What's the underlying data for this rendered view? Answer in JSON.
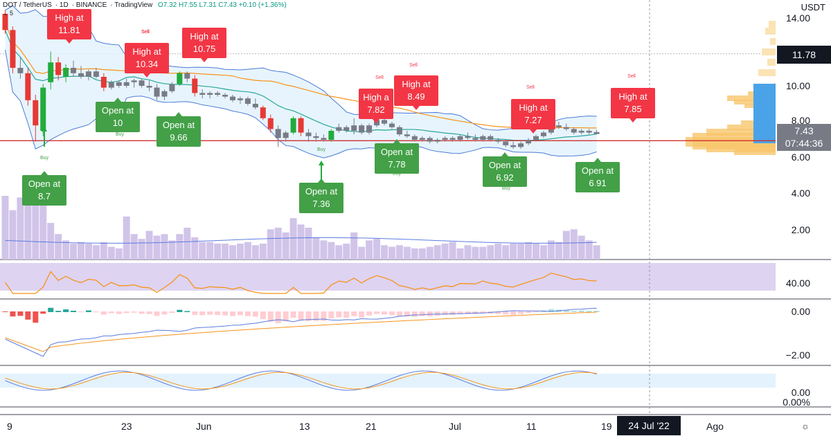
{
  "header": {
    "symbol": "DOT / TetherUS",
    "interval": "1D",
    "exchange": "BINANCE",
    "platform": "TradingView",
    "ohlc": "O7.32 H7.55 L7.31 C7.43 +0.10 (+1.36%)",
    "sub": "⌄ 5"
  },
  "axis": {
    "unit": "USDT",
    "price_ticks": [
      "14.00",
      "10.00",
      "8.00",
      "6.00",
      "4.00",
      "2.00"
    ],
    "rsi_tick": "40.00",
    "macd_ticks": [
      "0.00",
      "−2.00"
    ],
    "stoch_ticks": [
      "0.00",
      "0.00%"
    ],
    "date_ticks": [
      "9",
      "23",
      "Jun",
      "13",
      "21",
      "Jul",
      "11",
      "19",
      "Ago"
    ],
    "date_highlight": "24 Jul '22"
  },
  "price_labels": {
    "last": "7.43",
    "countdown": "07:44:36",
    "marker": "11.78"
  },
  "colors": {
    "up": "#22ab3c",
    "down": "#e53935",
    "neutral_candle": "#787b86",
    "sell_label": "#f23645",
    "buy_label": "#43a047",
    "bollinger_band": "#4a7ad6",
    "bollinger_fill": "#e3f2fd",
    "sma": "#f7931a",
    "middle": "#26a69a",
    "volume": "#d1c4e9",
    "rsi_band": "#d6c8ee",
    "support": "#d32f2f"
  },
  "signals": [
    {
      "type": "sell",
      "lines": [
        "High at",
        "11.81"
      ],
      "tag": "Sell",
      "date": "May 14"
    },
    {
      "type": "sell",
      "lines": [
        "High at",
        "10.34"
      ],
      "tag": "Sell",
      "date": "May 24"
    },
    {
      "type": "sell",
      "lines": [
        "High at",
        "10.75"
      ],
      "tag": "Sell",
      "date": "Jun 1"
    },
    {
      "type": "sell",
      "lines": [
        "High a",
        "7.82"
      ],
      "tag": "Sell",
      "date": "Jun 20"
    },
    {
      "type": "sell",
      "lines": [
        "High at",
        "8.49"
      ],
      "tag": "Sell",
      "date": "Jun 23"
    },
    {
      "type": "sell",
      "lines": [
        "High at",
        "7.27"
      ],
      "tag": "Sell",
      "date": "Jul 9"
    },
    {
      "type": "sell",
      "lines": [
        "High at",
        "7.85"
      ],
      "tag": "Sell",
      "date": "Jul 20"
    },
    {
      "type": "buy",
      "lines": [
        "Open at",
        "8.7"
      ],
      "tag": "Buy",
      "date": "May 12"
    },
    {
      "type": "buy",
      "lines": [
        "Open at",
        "10"
      ],
      "tag": "Buy",
      "date": "May 23"
    },
    {
      "type": "buy",
      "lines": [
        "Open at",
        "9.66"
      ],
      "tag": "Buy",
      "date": "May 28"
    },
    {
      "type": "buy",
      "lines": [
        "Open at",
        "7.36"
      ],
      "tag": "Buy",
      "date": "Jun 14"
    },
    {
      "type": "buy",
      "lines": [
        "Open at",
        "7.78"
      ],
      "tag": "Buy",
      "date": "Jun 22"
    },
    {
      "type": "buy",
      "lines": [
        "Open at",
        "6.92"
      ],
      "tag": "Buy",
      "date": "Jul 7"
    },
    {
      "type": "buy",
      "lines": [
        "Open at",
        "6.91"
      ],
      "tag": "Buy",
      "date": "Jul 16"
    }
  ],
  "chart_data": {
    "type": "candlestick",
    "series_unit": "USDT",
    "support_level": 6.95,
    "resistance_level": 11.78,
    "candles_ohlc_from_May_6": [
      [
        14.0,
        14.2,
        12.9,
        13.1
      ],
      [
        13.1,
        13.3,
        10.7,
        11.0
      ],
      [
        11.0,
        11.6,
        10.4,
        10.7
      ],
      [
        10.7,
        11.0,
        8.9,
        9.2
      ],
      [
        9.2,
        9.5,
        6.9,
        7.8
      ],
      [
        7.5,
        10.1,
        7.2,
        9.9
      ],
      [
        10.2,
        11.9,
        9.8,
        11.3
      ],
      [
        11.3,
        11.6,
        10.3,
        10.6
      ],
      [
        10.5,
        11.2,
        10.2,
        11.0
      ],
      [
        11.0,
        11.4,
        10.5,
        10.7
      ],
      [
        10.7,
        11.1,
        10.4,
        10.5
      ],
      [
        10.5,
        10.9,
        10.3,
        10.8
      ],
      [
        10.8,
        11.0,
        10.4,
        10.5
      ],
      [
        10.5,
        10.7,
        9.7,
        9.9
      ],
      [
        9.9,
        10.3,
        9.8,
        10.2
      ],
      [
        10.2,
        10.3,
        9.9,
        10.0
      ],
      [
        10.0,
        10.4,
        9.9,
        10.2
      ],
      [
        10.2,
        10.4,
        9.9,
        10.3
      ],
      [
        10.3,
        10.4,
        9.9,
        10.0
      ],
      [
        10.0,
        10.3,
        9.7,
        9.9
      ],
      [
        9.9,
        10.1,
        9.2,
        9.4
      ],
      [
        9.4,
        9.8,
        9.2,
        9.7
      ],
      [
        9.7,
        10.2,
        9.6,
        10.1
      ],
      [
        10.1,
        10.8,
        10.0,
        10.7
      ],
      [
        10.7,
        10.8,
        10.2,
        10.4
      ],
      [
        10.4,
        10.6,
        9.4,
        9.6
      ],
      [
        9.6,
        9.8,
        9.3,
        9.5
      ],
      [
        9.5,
        9.7,
        9.3,
        9.6
      ],
      [
        9.6,
        9.7,
        9.4,
        9.5
      ],
      [
        9.5,
        9.6,
        9.3,
        9.4
      ],
      [
        9.4,
        9.5,
        9.1,
        9.2
      ],
      [
        9.2,
        9.4,
        9.0,
        9.3
      ],
      [
        9.3,
        9.4,
        8.9,
        9.0
      ],
      [
        9.0,
        9.3,
        8.7,
        8.8
      ],
      [
        8.8,
        8.9,
        8.1,
        8.2
      ],
      [
        8.2,
        8.4,
        7.4,
        7.6
      ],
      [
        7.6,
        7.8,
        6.6,
        7.1
      ],
      [
        7.1,
        7.5,
        6.9,
        7.4
      ],
      [
        7.4,
        8.3,
        7.3,
        8.2
      ],
      [
        8.2,
        8.3,
        7.2,
        7.4
      ],
      [
        7.4,
        7.6,
        6.9,
        7.2
      ],
      [
        7.2,
        7.4,
        6.9,
        7.1
      ],
      [
        7.1,
        7.3,
        6.9,
        7.0
      ],
      [
        7.0,
        7.6,
        6.9,
        7.5
      ],
      [
        7.5,
        7.9,
        7.4,
        7.7
      ],
      [
        7.7,
        7.8,
        7.4,
        7.5
      ],
      [
        7.5,
        8.2,
        7.3,
        7.8
      ],
      [
        7.8,
        7.9,
        7.3,
        7.4
      ],
      [
        7.4,
        7.9,
        7.3,
        7.8
      ],
      [
        7.8,
        8.5,
        7.7,
        8.1
      ],
      [
        8.1,
        8.4,
        7.8,
        7.9
      ],
      [
        7.9,
        8.0,
        7.6,
        7.7
      ],
      [
        7.7,
        7.8,
        7.2,
        7.3
      ],
      [
        7.3,
        7.5,
        7.1,
        7.2
      ],
      [
        7.2,
        7.3,
        6.9,
        7.0
      ],
      [
        7.0,
        7.2,
        6.9,
        7.1
      ],
      [
        7.1,
        7.2,
        6.8,
        6.9
      ],
      [
        6.9,
        7.1,
        6.8,
        7.0
      ],
      [
        7.0,
        7.2,
        6.9,
        7.1
      ],
      [
        7.1,
        7.2,
        6.9,
        7.0
      ],
      [
        7.0,
        7.3,
        6.9,
        7.2
      ],
      [
        7.2,
        7.4,
        7.0,
        7.1
      ],
      [
        7.1,
        7.3,
        6.9,
        7.0
      ],
      [
        7.0,
        7.3,
        6.9,
        7.2
      ],
      [
        7.2,
        7.3,
        6.9,
        7.0
      ],
      [
        7.0,
        7.1,
        6.8,
        6.9
      ],
      [
        6.9,
        7.0,
        6.6,
        6.7
      ],
      [
        6.7,
        6.9,
        6.5,
        6.6
      ],
      [
        6.6,
        6.9,
        6.5,
        6.8
      ],
      [
        6.8,
        7.1,
        6.7,
        7.0
      ],
      [
        7.0,
        7.3,
        6.9,
        7.2
      ],
      [
        7.2,
        7.5,
        7.1,
        7.4
      ],
      [
        7.4,
        7.9,
        7.3,
        7.8
      ],
      [
        7.8,
        8.0,
        7.6,
        7.7
      ],
      [
        7.7,
        7.9,
        7.5,
        7.6
      ],
      [
        7.6,
        7.7,
        7.3,
        7.4
      ],
      [
        7.4,
        7.6,
        7.3,
        7.5
      ],
      [
        7.5,
        7.6,
        7.3,
        7.4
      ],
      [
        7.32,
        7.55,
        7.31,
        7.43
      ]
    ],
    "volume_millions": [
      4.0,
      3.1,
      3.9,
      3.6,
      4.4,
      3.5,
      2.3,
      1.6,
      1.2,
      1.0,
      1.1,
      1.0,
      0.9,
      1.1,
      0.8,
      0.7,
      2.7,
      1.6,
      1.3,
      1.8,
      1.5,
      1.6,
      1.2,
      1.6,
      2.0,
      1.4,
      1.1,
      1.1,
      1.0,
      1.0,
      0.9,
      1.0,
      1.1,
      0.9,
      1.0,
      1.9,
      2.0,
      1.7,
      2.6,
      2.2,
      2.0,
      1.4,
      1.2,
      1.1,
      0.9,
      1.0,
      1.7,
      0.8,
      1.2,
      1.3,
      0.9,
      0.8,
      0.9,
      0.8,
      0.7,
      0.7,
      0.8,
      0.9,
      1.0,
      1.1,
      0.7,
      0.9,
      0.8,
      0.8,
      0.9,
      1.0,
      0.9,
      1.0,
      1.0,
      1.1,
      1.0,
      0.9,
      1.2,
      1.1,
      1.8,
      1.9,
      1.5,
      1.2,
      0.9
    ]
  }
}
